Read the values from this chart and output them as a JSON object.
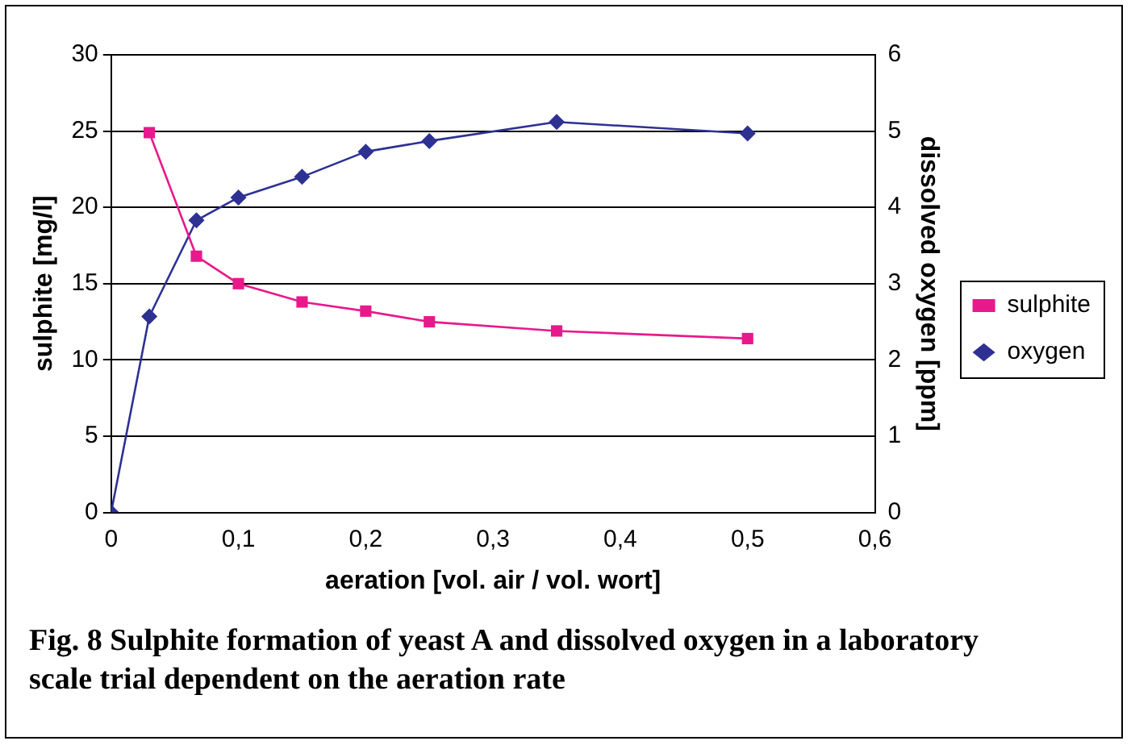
{
  "chart_data": {
    "type": "line",
    "title": "Fig. 8   Sulphite formation of yeast A and dissolved oxygen in a laboratory scale trial dependent on the aeration rate",
    "xlabel": "aeration [vol. air / vol. wort]",
    "ylabel": "sulphite [mg/l]",
    "y2label": "dissolved oxygen [ppm]",
    "series": [
      {
        "name": "sulphite",
        "color": "#e8198b",
        "marker": "square",
        "x": [
          0.03,
          0.067,
          0.1,
          0.15,
          0.2,
          0.25,
          0.35,
          0.5
        ],
        "values": [
          24.9,
          16.8,
          15.0,
          13.8,
          13.2,
          12.5,
          11.9,
          11.4
        ]
      },
      {
        "name": "oxygen",
        "color": "#2e3192",
        "marker": "diamond",
        "axis": "y2",
        "x": [
          0,
          0.03,
          0.067,
          0.1,
          0.15,
          0.2,
          0.25,
          0.35,
          0.5
        ],
        "values": [
          0,
          2.57,
          3.83,
          4.13,
          4.4,
          4.73,
          4.87,
          5.12,
          4.97
        ]
      }
    ],
    "xlim": [
      0,
      0.6
    ],
    "xticks": [
      0,
      {
        "value": 0.1,
        "label": "0,1"
      },
      {
        "value": 0.2,
        "label": "0,2"
      },
      {
        "value": 0.3,
        "label": "0,3"
      },
      {
        "value": 0.4,
        "label": "0,4"
      },
      {
        "value": 0.5,
        "label": "0,5"
      },
      {
        "value": 0.6,
        "label": "0,6"
      }
    ],
    "ylim": [
      0,
      30
    ],
    "yticks": [
      0,
      5,
      10,
      15,
      20,
      25,
      30
    ],
    "y2lim": [
      0,
      6
    ],
    "y2ticks": [
      0,
      1,
      2,
      3,
      4,
      5,
      6
    ],
    "grid": "y",
    "legend": "right",
    "line_style": "solid"
  }
}
